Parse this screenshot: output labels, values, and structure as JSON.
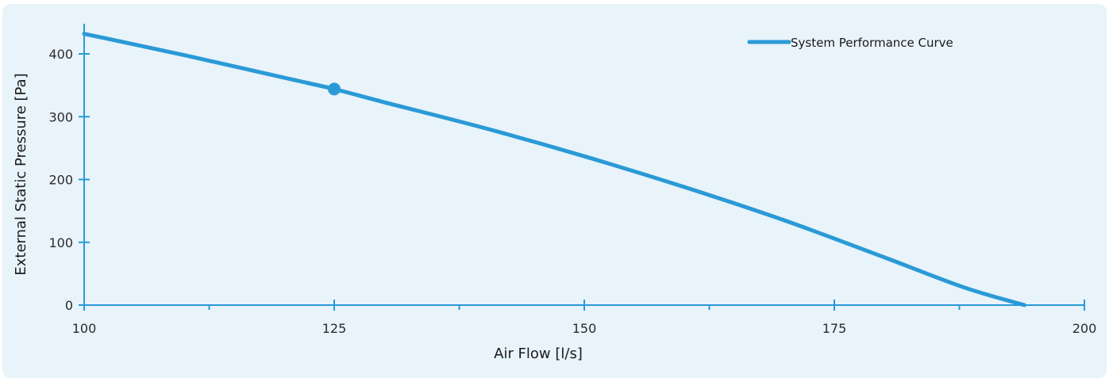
{
  "chart_data": {
    "type": "line",
    "xlabel": "Air Flow [l/s]",
    "ylabel": "External Static Pressure [Pa]",
    "xlim": [
      100,
      200
    ],
    "ylim": [
      0,
      450
    ],
    "x_ticks": [
      100,
      125,
      150,
      175,
      200
    ],
    "y_ticks": [
      0,
      100,
      200,
      300,
      400
    ],
    "x_minor_ticks": [
      112.5,
      137.5,
      162.5,
      187.5
    ],
    "grid": false,
    "legend_position": "top-right",
    "series": [
      {
        "name": "System Performance Curve",
        "color": "#2a9ad6",
        "x": [
          100,
          110,
          120,
          125,
          130,
          140,
          150,
          160,
          170,
          180,
          188,
          194
        ],
        "y": [
          432,
          398,
          362,
          344,
          323,
          282,
          237,
          188,
          135,
          76,
          28,
          0
        ]
      }
    ],
    "marker": {
      "x": 125,
      "y": 344,
      "color": "#2a9ad6"
    }
  }
}
